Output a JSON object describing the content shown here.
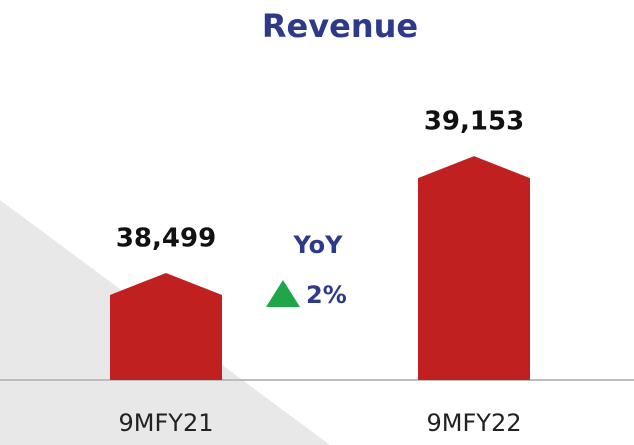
{
  "chart_data": {
    "type": "bar",
    "title": "Revenue",
    "categories": [
      "9MFY21",
      "9MFY22"
    ],
    "values": [
      38499,
      39153
    ],
    "value_labels": [
      "38,499",
      "39,153"
    ],
    "color": "#c0201f",
    "ylim": [
      37900,
      39400
    ],
    "annotation": {
      "title": "YoY",
      "change": "2%"
    }
  }
}
